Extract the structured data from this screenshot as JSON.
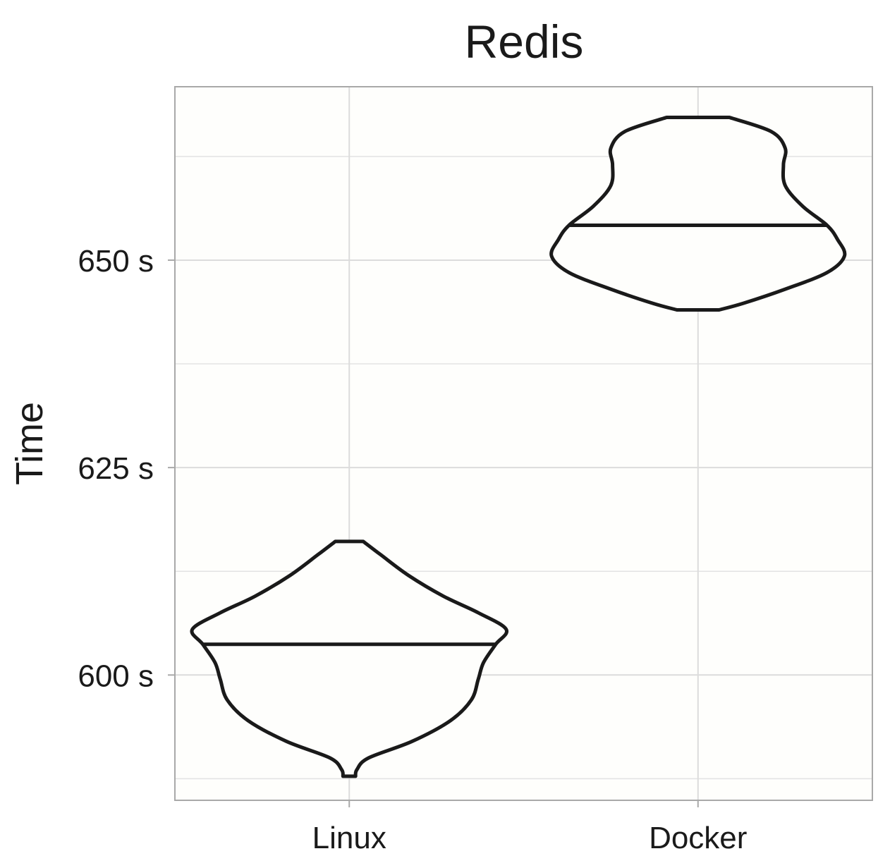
{
  "chart_data": {
    "type": "violin",
    "title": "Redis",
    "xlabel": "",
    "ylabel": "Time",
    "categories": [
      "Linux",
      "Docker"
    ],
    "y_unit_suffix": " s",
    "yticks": [
      600,
      625,
      650
    ],
    "yticks_minor": [
      587.5,
      612.5,
      637.5,
      662.5
    ],
    "ylim": [
      584.9,
      670.9
    ],
    "grid": true,
    "series": [
      {
        "category": "Linux",
        "median": 603.7,
        "min": 587.8,
        "max": 616.1,
        "density_profile": [
          {
            "y": 587.8,
            "half_width": 0.018
          },
          {
            "y": 588.6,
            "half_width": 0.022
          },
          {
            "y": 590.0,
            "half_width": 0.055
          },
          {
            "y": 592.0,
            "half_width": 0.18
          },
          {
            "y": 594.5,
            "half_width": 0.29
          },
          {
            "y": 597.0,
            "half_width": 0.35
          },
          {
            "y": 599.5,
            "half_width": 0.37
          },
          {
            "y": 601.5,
            "half_width": 0.385
          },
          {
            "y": 603.7,
            "half_width": 0.42
          },
          {
            "y": 605.5,
            "half_width": 0.45
          },
          {
            "y": 607.5,
            "half_width": 0.37
          },
          {
            "y": 609.5,
            "half_width": 0.27
          },
          {
            "y": 612.0,
            "half_width": 0.17
          },
          {
            "y": 614.5,
            "half_width": 0.09
          },
          {
            "y": 616.1,
            "half_width": 0.04
          }
        ]
      },
      {
        "category": "Docker",
        "median": 654.2,
        "min": 644.0,
        "max": 667.2,
        "density_profile": [
          {
            "y": 644.0,
            "half_width": 0.06
          },
          {
            "y": 644.8,
            "half_width": 0.13
          },
          {
            "y": 646.5,
            "half_width": 0.25
          },
          {
            "y": 648.5,
            "half_width": 0.37
          },
          {
            "y": 650.5,
            "half_width": 0.42
          },
          {
            "y": 652.5,
            "half_width": 0.4
          },
          {
            "y": 654.2,
            "half_width": 0.37
          },
          {
            "y": 656.5,
            "half_width": 0.3
          },
          {
            "y": 659.0,
            "half_width": 0.25
          },
          {
            "y": 661.5,
            "half_width": 0.245
          },
          {
            "y": 663.5,
            "half_width": 0.25
          },
          {
            "y": 665.5,
            "half_width": 0.21
          },
          {
            "y": 667.2,
            "half_width": 0.09
          }
        ]
      }
    ]
  }
}
